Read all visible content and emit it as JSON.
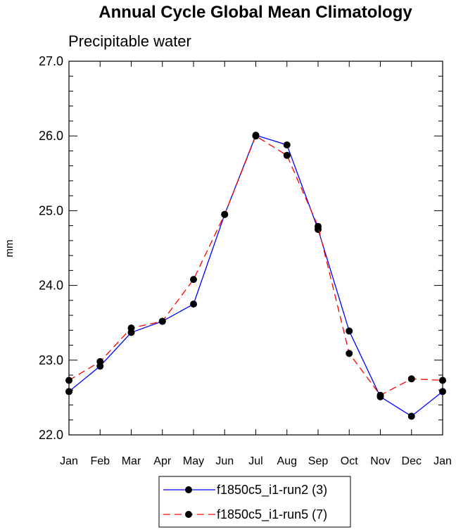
{
  "chart_data": {
    "type": "line",
    "title": "Annual Cycle Global Mean Climatology",
    "subtitle": "Precipitable water",
    "xlabel": "",
    "ylabel": "mm",
    "categories": [
      "Jan",
      "Feb",
      "Mar",
      "Apr",
      "May",
      "Jun",
      "Jul",
      "Aug",
      "Sep",
      "Oct",
      "Nov",
      "Dec",
      "Jan"
    ],
    "ylim": [
      22.0,
      27.0
    ],
    "yticks": [
      "22.0",
      "23.0",
      "24.0",
      "25.0",
      "26.0",
      "27.0"
    ],
    "grid": false,
    "legend_position": "bottom",
    "series": [
      {
        "name": "f1850c5_i1-run2 (3)",
        "color": "#0000ff",
        "dash": "solid",
        "values": [
          22.58,
          22.92,
          23.37,
          23.52,
          23.75,
          24.95,
          26.01,
          25.88,
          24.75,
          23.39,
          22.51,
          22.25,
          22.58
        ]
      },
      {
        "name": "f1850c5_i1-run5 (7)",
        "color": "#ff0000",
        "dash": "dashed",
        "values": [
          22.73,
          22.98,
          23.43,
          23.52,
          24.08,
          24.95,
          26.0,
          25.74,
          24.79,
          23.09,
          22.53,
          22.75,
          22.73
        ]
      }
    ]
  }
}
